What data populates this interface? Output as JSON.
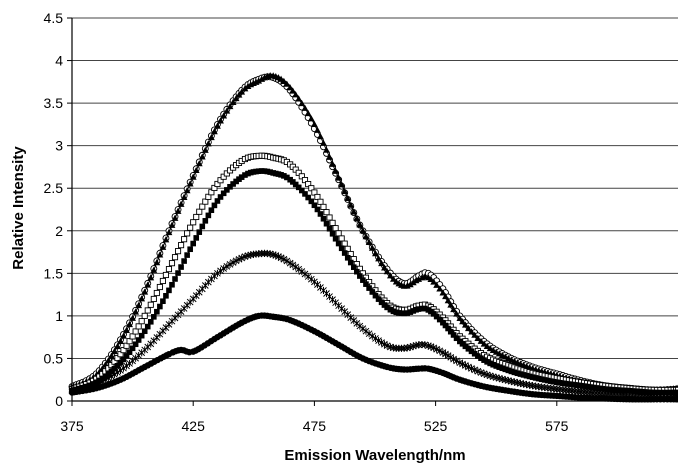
{
  "chart_data": {
    "type": "line",
    "title": "",
    "xlabel": "Emission Wavelength/nm",
    "ylabel": "Relative Intensity",
    "xlim": [
      375,
      625
    ],
    "ylim": [
      0,
      4.5
    ],
    "x_ticks": [
      "375",
      "425",
      "475",
      "525",
      "575"
    ],
    "x_tick_values": [
      375,
      425,
      475,
      525,
      575
    ],
    "y_ticks": [
      "0",
      "0.5",
      "1",
      "1.5",
      "2",
      "2.5",
      "3",
      "3.5",
      "4",
      "4.5"
    ],
    "y_tick_values": [
      0,
      0.5,
      1,
      1.5,
      2,
      2.5,
      3,
      3.5,
      4,
      4.5
    ],
    "grid": "horizontal",
    "legend": "none",
    "series": [
      {
        "marker": "open-circle",
        "x": [
          375,
          385,
          395,
          405,
          415,
          425,
          435,
          445,
          452,
          458,
          465,
          475,
          485,
          495,
          505,
          512,
          518,
          522,
          528,
          535,
          545,
          555,
          565,
          575,
          585,
          595,
          605,
          615,
          625
        ],
        "y": [
          0.17,
          0.32,
          0.72,
          1.3,
          2.0,
          2.65,
          3.25,
          3.65,
          3.78,
          3.8,
          3.65,
          3.2,
          2.6,
          2.0,
          1.55,
          1.38,
          1.47,
          1.5,
          1.32,
          1.0,
          0.7,
          0.52,
          0.4,
          0.32,
          0.24,
          0.18,
          0.15,
          0.13,
          0.14
        ]
      },
      {
        "marker": "filled-triangle",
        "x": [
          375,
          385,
          395,
          405,
          415,
          425,
          435,
          445,
          452,
          458,
          465,
          475,
          485,
          495,
          505,
          512,
          518,
          522,
          528,
          535,
          545,
          555,
          565,
          575,
          585,
          595,
          605,
          615,
          625
        ],
        "y": [
          0.16,
          0.3,
          0.7,
          1.28,
          1.98,
          2.63,
          3.23,
          3.63,
          3.76,
          3.82,
          3.68,
          3.25,
          2.62,
          2.0,
          1.52,
          1.35,
          1.43,
          1.45,
          1.27,
          0.97,
          0.67,
          0.5,
          0.38,
          0.3,
          0.22,
          0.17,
          0.14,
          0.12,
          0.15
        ]
      },
      {
        "marker": "open-square",
        "x": [
          375,
          385,
          395,
          405,
          415,
          425,
          435,
          445,
          452,
          458,
          465,
          475,
          485,
          495,
          505,
          512,
          518,
          522,
          528,
          535,
          545,
          555,
          565,
          575,
          585,
          595,
          605,
          615,
          625
        ],
        "y": [
          0.14,
          0.26,
          0.55,
          1.0,
          1.55,
          2.1,
          2.55,
          2.82,
          2.88,
          2.86,
          2.78,
          2.45,
          1.97,
          1.5,
          1.15,
          1.07,
          1.12,
          1.12,
          0.98,
          0.76,
          0.54,
          0.42,
          0.33,
          0.27,
          0.22,
          0.18,
          0.15,
          0.13,
          0.13
        ]
      },
      {
        "marker": "filled-square",
        "x": [
          375,
          385,
          395,
          405,
          415,
          425,
          435,
          445,
          452,
          458,
          465,
          475,
          485,
          495,
          505,
          512,
          518,
          522,
          528,
          535,
          545,
          555,
          565,
          575,
          585,
          595,
          605,
          615,
          625
        ],
        "y": [
          0.12,
          0.22,
          0.45,
          0.82,
          1.3,
          1.85,
          2.35,
          2.63,
          2.7,
          2.68,
          2.6,
          2.3,
          1.85,
          1.42,
          1.1,
          1.03,
          1.08,
          1.07,
          0.92,
          0.7,
          0.48,
          0.36,
          0.28,
          0.22,
          0.18,
          0.14,
          0.12,
          0.1,
          0.1
        ]
      },
      {
        "marker": "star",
        "x": [
          375,
          385,
          395,
          405,
          415,
          425,
          435,
          445,
          452,
          458,
          465,
          475,
          485,
          495,
          505,
          512,
          518,
          522,
          528,
          535,
          545,
          555,
          565,
          575,
          585,
          595,
          605,
          615,
          625
        ],
        "y": [
          0.12,
          0.2,
          0.36,
          0.6,
          0.9,
          1.2,
          1.5,
          1.68,
          1.73,
          1.72,
          1.62,
          1.4,
          1.12,
          0.85,
          0.65,
          0.62,
          0.66,
          0.65,
          0.57,
          0.45,
          0.32,
          0.24,
          0.18,
          0.14,
          0.11,
          0.09,
          0.08,
          0.07,
          0.07
        ]
      },
      {
        "marker": "filled-circle",
        "x": [
          375,
          385,
          395,
          405,
          415,
          420,
          425,
          435,
          445,
          452,
          458,
          465,
          475,
          485,
          495,
          505,
          512,
          518,
          522,
          528,
          535,
          545,
          555,
          565,
          575,
          585,
          595,
          605,
          615,
          625
        ],
        "y": [
          0.1,
          0.15,
          0.25,
          0.4,
          0.55,
          0.6,
          0.58,
          0.75,
          0.92,
          1.0,
          0.99,
          0.95,
          0.82,
          0.66,
          0.5,
          0.4,
          0.37,
          0.38,
          0.38,
          0.33,
          0.25,
          0.17,
          0.12,
          0.08,
          0.06,
          0.04,
          0.03,
          0.02,
          0.02,
          0.02
        ]
      }
    ]
  }
}
